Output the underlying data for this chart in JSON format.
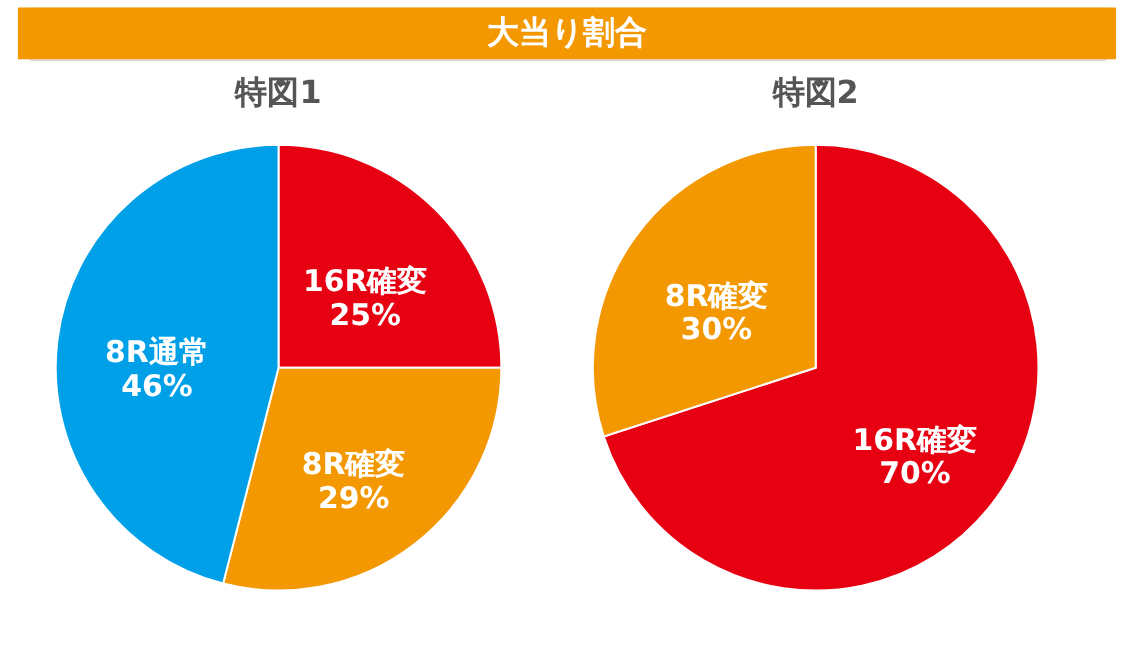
{
  "chart_data": [
    {
      "type": "pie",
      "title": "特図1",
      "annotations": [
        "大当り割合"
      ],
      "categories": [
        "16R確変",
        "8R確変",
        "8R通常"
      ],
      "values": [
        25,
        29,
        46
      ],
      "value_labels": [
        "25%",
        "29%",
        "46%"
      ],
      "colors": [
        "#e60012",
        "#f39800",
        "#00a0e9"
      ],
      "legend": false
    },
    {
      "type": "pie",
      "title": "特図2",
      "categories": [
        "16R確変",
        "8R確変"
      ],
      "values": [
        70,
        30
      ],
      "value_labels": [
        "70%",
        "30%"
      ],
      "colors": [
        "#e60012",
        "#f39800"
      ],
      "legend": false
    }
  ]
}
